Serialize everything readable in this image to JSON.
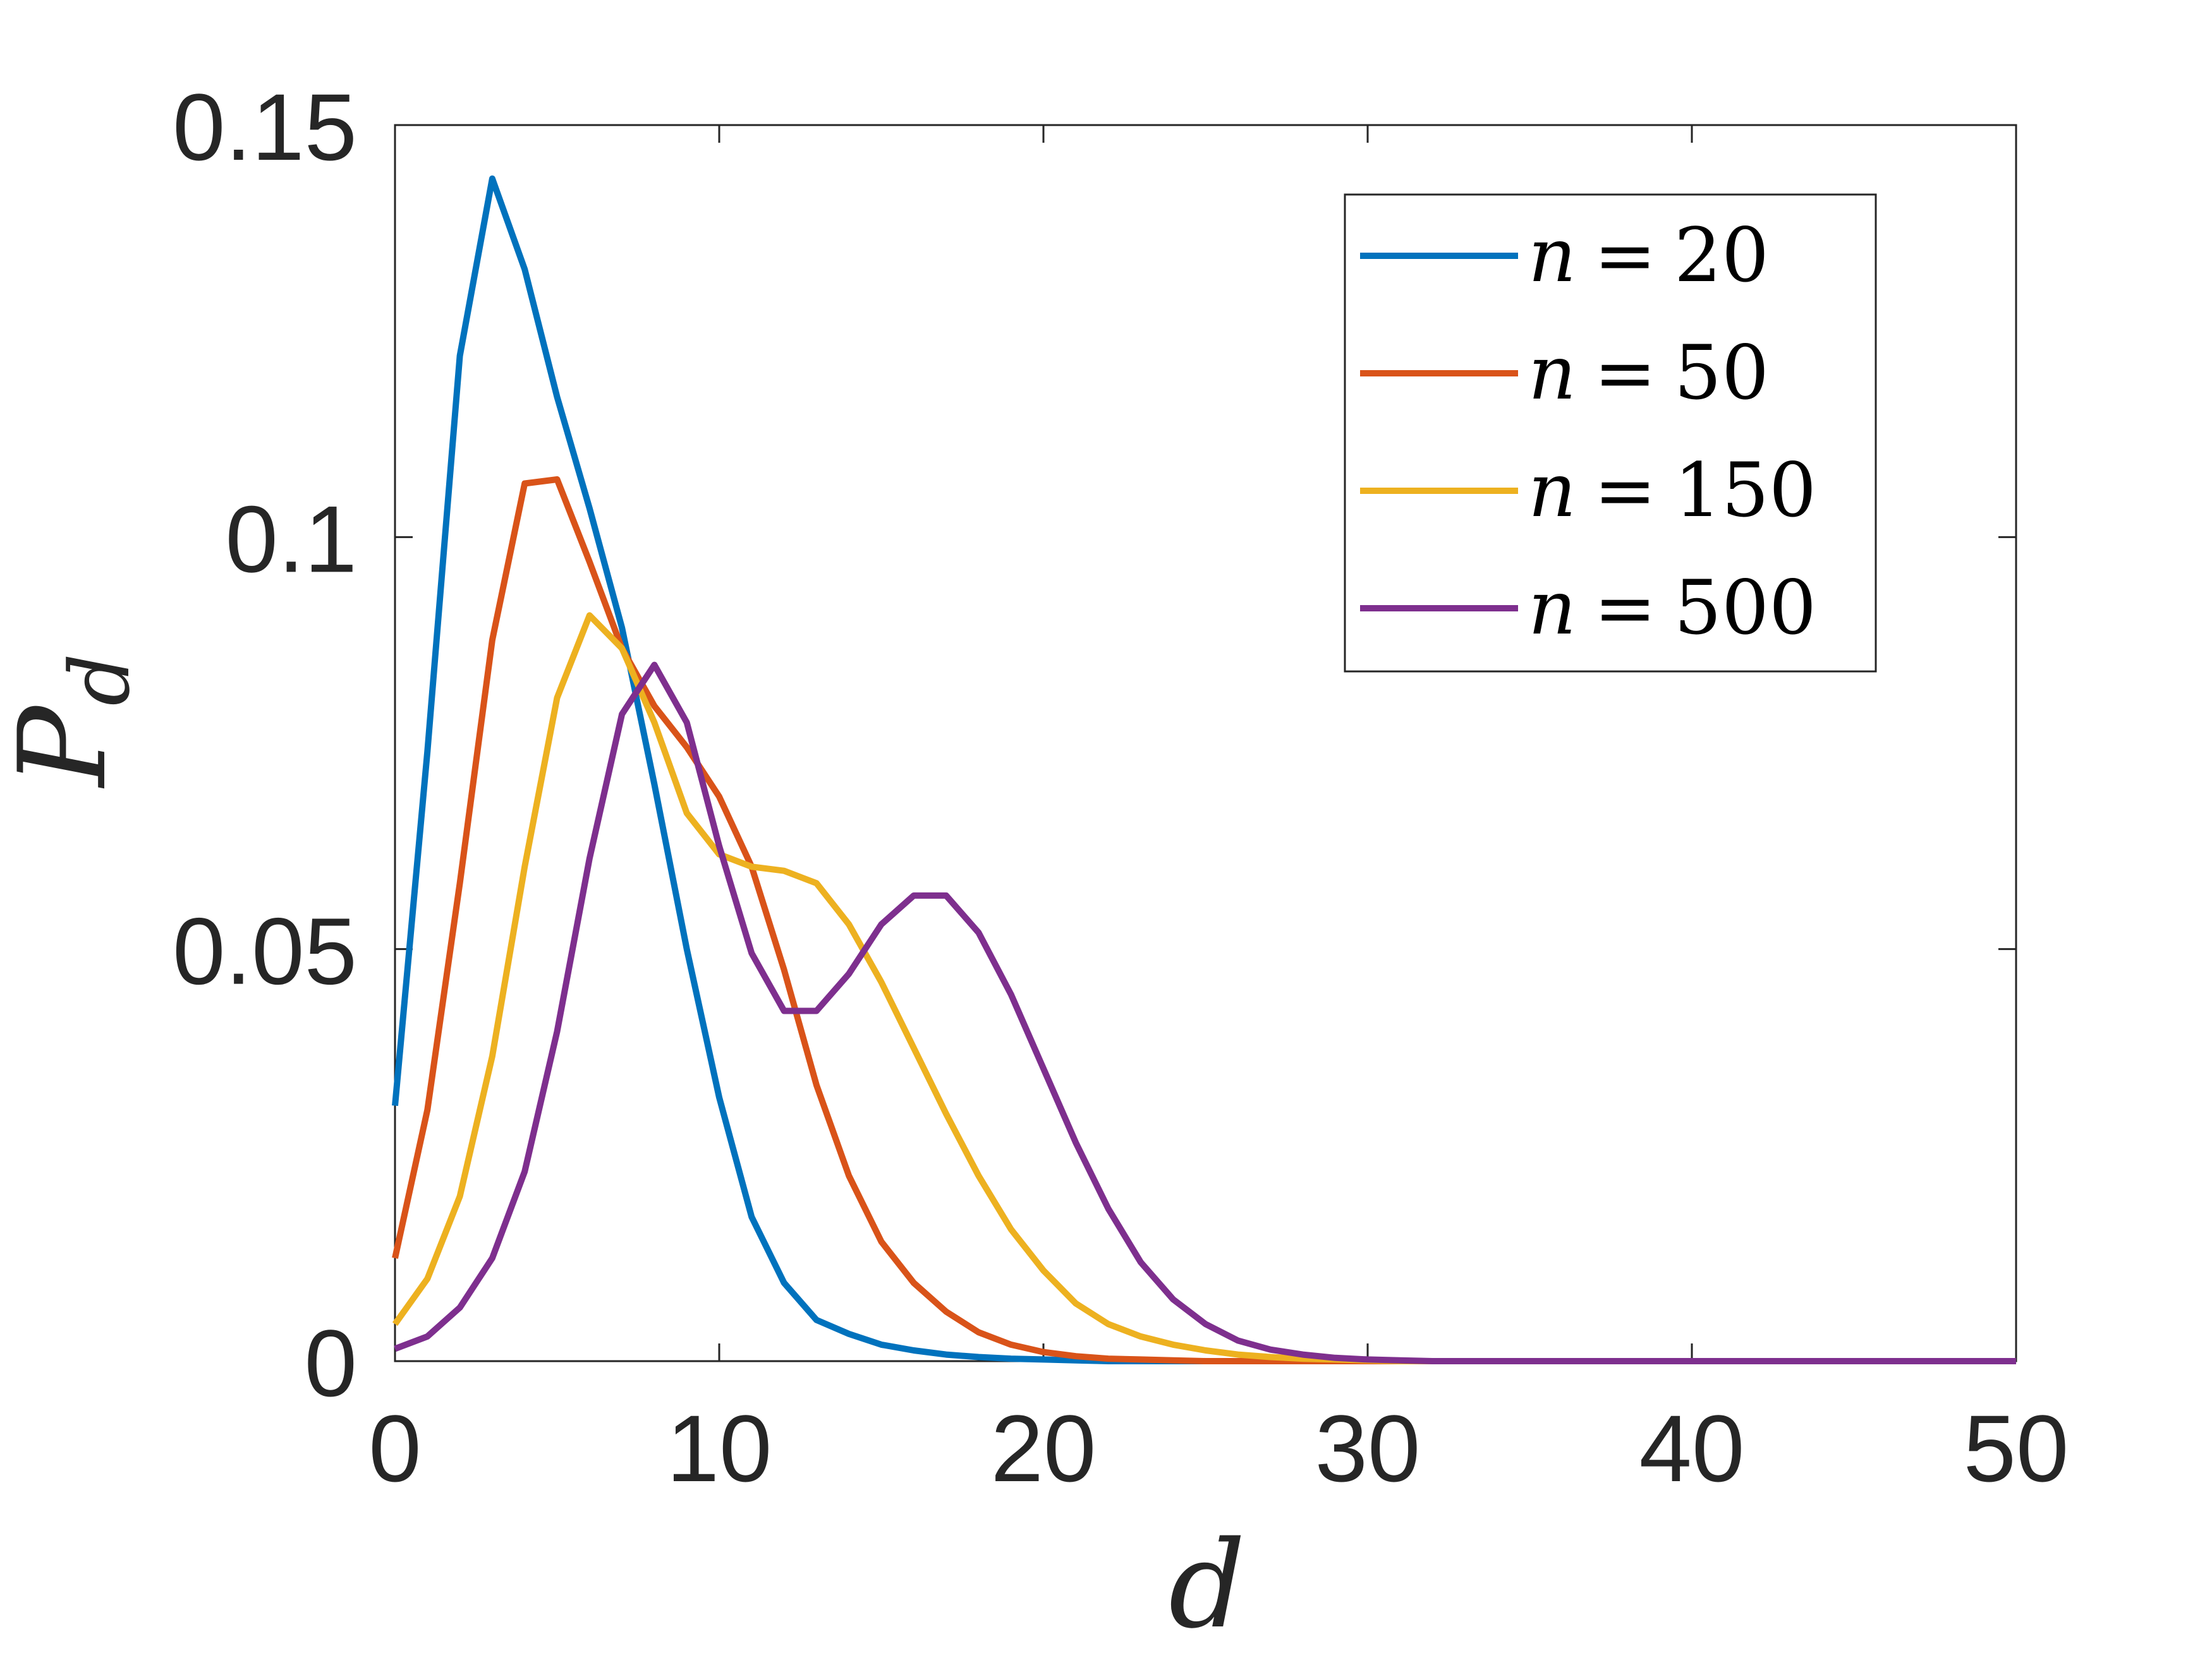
{
  "chart_data": {
    "type": "line",
    "xlabel": "d",
    "ylabel": "P",
    "ylabel_sub": "d",
    "xlim": [
      0,
      50
    ],
    "ylim": [
      0,
      0.15
    ],
    "xticks": [
      0,
      10,
      20,
      30,
      40,
      50
    ],
    "xtick_labels": [
      "0",
      "10",
      "20",
      "30",
      "40",
      "50"
    ],
    "yticks": [
      0,
      0.05,
      0.1,
      0.15
    ],
    "ytick_labels": [
      "0",
      "0.05",
      "0.1",
      "0.15"
    ],
    "grid": false,
    "legend_position": "top-right",
    "x": [
      0,
      1,
      2,
      3,
      4,
      5,
      6,
      7,
      8,
      9,
      10,
      11,
      12,
      13,
      14,
      15,
      16,
      17,
      18,
      19,
      20,
      21,
      22,
      23,
      24,
      25,
      26,
      27,
      28,
      29,
      30,
      31,
      32,
      33,
      34,
      35,
      36,
      37,
      38,
      39,
      40,
      41,
      42,
      43,
      44,
      45,
      46,
      47,
      48,
      49,
      50
    ],
    "series": [
      {
        "name": "n = 20",
        "label_var": "n",
        "label_eq": "=",
        "label_num": "20",
        "color": "#0072BD",
        "values": [
          0.031,
          0.074,
          0.122,
          0.1435,
          0.1325,
          0.117,
          0.1035,
          0.089,
          0.07,
          0.05,
          0.032,
          0.0175,
          0.0095,
          0.005,
          0.0033,
          0.002,
          0.0013,
          0.0008,
          0.0005,
          0.0003,
          0.0002,
          0.0001,
          0,
          0,
          0,
          0,
          0,
          0,
          0,
          0,
          0,
          0,
          0,
          0,
          0,
          0,
          0,
          0,
          0,
          0,
          0,
          0,
          0,
          0,
          0,
          0,
          0,
          0,
          0,
          0,
          0
        ]
      },
      {
        "name": "n = 50",
        "label_var": "n",
        "label_eq": "=",
        "label_num": "50",
        "color": "#D95319",
        "values": [
          0.0125,
          0.0305,
          0.058,
          0.0875,
          0.1065,
          0.107,
          0.097,
          0.0865,
          0.0795,
          0.0745,
          0.0685,
          0.06,
          0.0475,
          0.0335,
          0.0225,
          0.0145,
          0.0095,
          0.006,
          0.0035,
          0.002,
          0.0011,
          0.0006,
          0.0003,
          0.0002,
          0.0001,
          0,
          0,
          0,
          0,
          0,
          0,
          0,
          0,
          0,
          0,
          0,
          0,
          0,
          0,
          0,
          0,
          0,
          0,
          0,
          0,
          0,
          0,
          0,
          0,
          0,
          0
        ]
      },
      {
        "name": "n = 150",
        "label_var": "n",
        "label_eq": "=",
        "label_num": "150",
        "color": "#EDB120",
        "values": [
          0.0045,
          0.01,
          0.02,
          0.037,
          0.06,
          0.0805,
          0.0905,
          0.0865,
          0.0775,
          0.0665,
          0.0615,
          0.06,
          0.0595,
          0.058,
          0.053,
          0.046,
          0.038,
          0.03,
          0.0225,
          0.016,
          0.011,
          0.007,
          0.0045,
          0.003,
          0.002,
          0.0013,
          0.0008,
          0.0005,
          0.0003,
          0.0002,
          0.0001,
          0,
          0,
          0,
          0,
          0,
          0,
          0,
          0,
          0,
          0,
          0,
          0,
          0,
          0,
          0,
          0,
          0,
          0,
          0,
          0
        ]
      },
      {
        "name": "n = 500",
        "label_var": "n",
        "label_eq": "=",
        "label_num": "500",
        "color": "#7E2F8E",
        "values": [
          0.0015,
          0.003,
          0.0065,
          0.0125,
          0.023,
          0.04,
          0.061,
          0.0785,
          0.0845,
          0.0775,
          0.0625,
          0.0495,
          0.0425,
          0.0425,
          0.047,
          0.053,
          0.0565,
          0.0565,
          0.052,
          0.0445,
          0.0355,
          0.0265,
          0.0185,
          0.012,
          0.0075,
          0.0045,
          0.0025,
          0.0014,
          0.0008,
          0.0004,
          0.0002,
          0.0001,
          0,
          0,
          0,
          0,
          0,
          0,
          0,
          0,
          0,
          0,
          0,
          0,
          0,
          0,
          0,
          0,
          0,
          0,
          0
        ]
      }
    ]
  }
}
